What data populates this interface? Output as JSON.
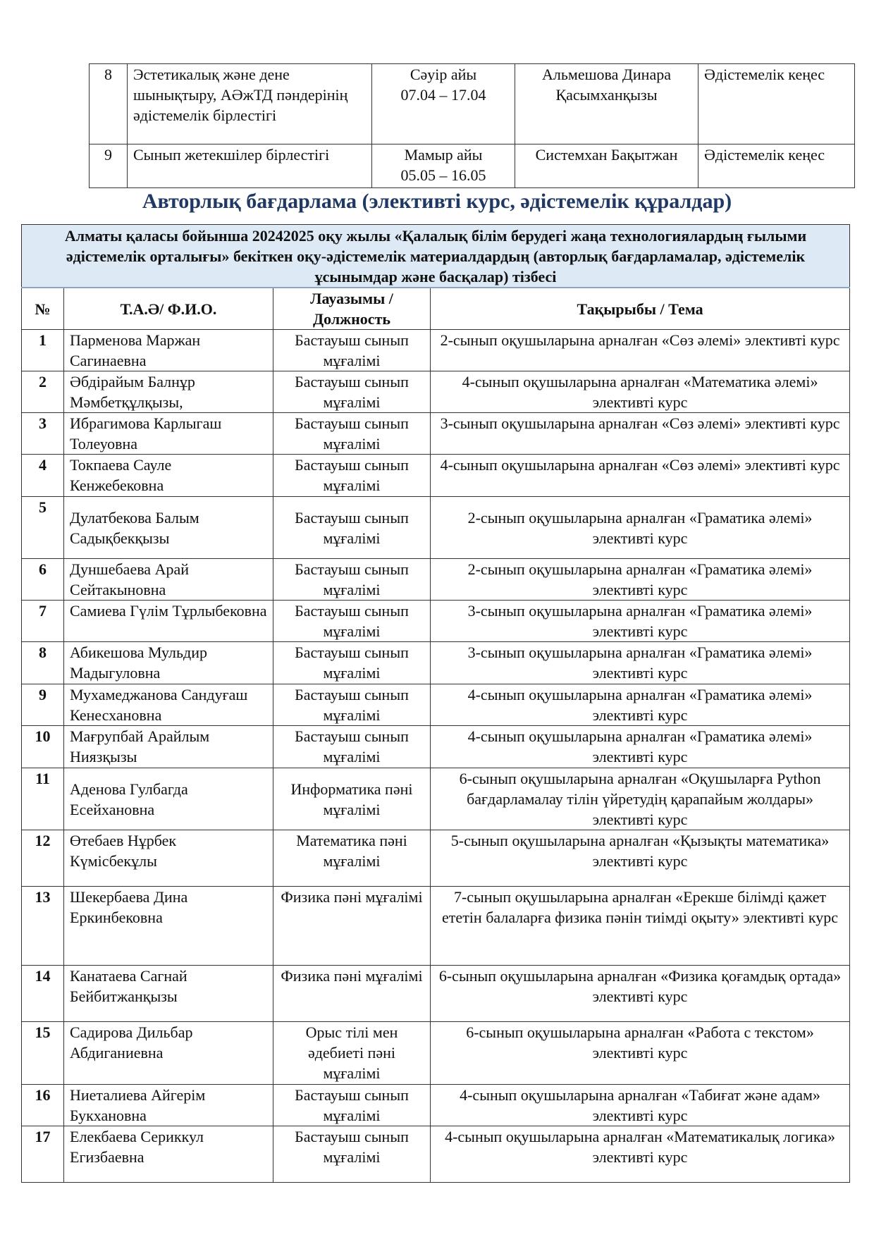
{
  "prev_table": [
    {
      "num": "8",
      "name": "Эстетикалық және дене шынықтыру, АӘжТД пәндерінің әдістемелік бірлестігі",
      "month": "Сәуір айы",
      "dates": "07.04 – 17.04",
      "person": "Альмешова Динара Қасымханқызы",
      "form": "Әдістемелік кеңес"
    },
    {
      "num": "9",
      "name": "Сынып жетекшілер бірлестігі",
      "month": "Мамыр айы",
      "dates": "05.05 – 16.05",
      "person": "Системхан Бақытжан",
      "form": "Әдістемелік кеңес"
    }
  ],
  "heading": "Авторлық бағдарлама (элективті курс, әдістемелік құралдар)",
  "main": {
    "banner": "Алматы қаласы бойынша 20242025 оқу жылы «Қалалық білім берудегі жаңа технологиялардың ғылыми әдістемелік орталығы» бекіткен оқу-әдістемелік материалдардың (авторлық бағдарламалар, әдістемелік ұсынымдар және басқалар) тізбесі",
    "headers": [
      "№",
      "Т.А.Ә/ Ф.И.О.",
      "Лауазымы / Должность",
      "Тақырыбы / Тема"
    ],
    "rows": [
      [
        "1",
        "Парменова Маржан Сагинаевна",
        "Бастауыш сынып мұғалімі",
        "2-сынып оқушыларына арналған «Сөз әлемі» элективті курс"
      ],
      [
        "2",
        "Әбдірайым Балнұр Мәмбетқұлқызы,",
        "Бастауыш сынып мұғалімі",
        "4-сынып оқушыларына арналған «Математика әлемі» элективті курс"
      ],
      [
        "3",
        "Ибрагимова Карлыгаш Толеуовна",
        "Бастауыш сынып мұғалімі",
        "3-сынып оқушыларына арналған «Сөз әлемі» элективті курс"
      ],
      [
        "4",
        "Токпаева Сауле Кенжебековна",
        "Бастауыш сынып мұғалімі",
        "4-сынып оқушыларына арналған «Сөз әлемі» элективті курс"
      ],
      [
        "5",
        "Дулатбекова Балым Садықбекқызы",
        "Бастауыш сынып мұғалімі",
        "2-сынып оқушыларына арналған «Граматика әлемі» элективті курс"
      ],
      [
        "6",
        "Дуншебаева Арай Сейтакыновна",
        "Бастауыш сынып мұғалімі",
        "2-сынып оқушыларына арналған «Граматика әлемі» элективті курс"
      ],
      [
        "7",
        "Самиева Гүлім Тұрлыбековна",
        "Бастауыш сынып мұғалімі",
        "3-сынып оқушыларына арналған «Граматика әлемі» элективті курс"
      ],
      [
        "8",
        "Абикешова Мульдир Мадыгуловна",
        "Бастауыш сынып мұғалімі",
        "3-сынып оқушыларына арналған «Граматика әлемі» элективті курс"
      ],
      [
        "9",
        "Мухамеджанова Сандуғаш Кенесхановна",
        "Бастауыш сынып мұғалімі",
        "4-сынып оқушыларына арналған «Граматика әлемі» элективті курс"
      ],
      [
        "10",
        "Мағрупбай Арайлым Ниязқызы",
        "Бастауыш сынып мұғалімі",
        "4-сынып оқушыларына арналған «Граматика әлемі» элективті курс"
      ],
      [
        "11",
        "Аденова Гулбагда Есейхановна",
        "Информатика пәні мұғалімі",
        "6-сынып оқушыларына арналған «Оқушыларға Python бағдарламалау тілін үйретудің қарапайым жолдары» элективті курс"
      ],
      [
        "12",
        "Өтебаев Нұрбек Күмісбекұлы",
        "Математика пәні мұғалімі",
        "5-сынып оқушыларына арналған  «Қызықты математика» элективті курс"
      ],
      [
        "13",
        "Шекербаева Дина Еркинбековна",
        "Физика пәні мұғалімі",
        "7-сынып оқушыларына арналған «Ерекше білімді қажет ететін балаларға физика пәнін тиімді оқыту» элективті курс"
      ],
      [
        "14",
        "Канатаева Сагнай Бейбитжанқызы",
        "Физика пәні мұғалімі",
        "6-сынып оқушыларына арналған «Физика қоғамдық ортада» элективті курс"
      ],
      [
        "15",
        "Садирова Дильбар Абдиганиевна",
        "Орыс тілі мен әдебиеті пәні мұғалімі",
        "6-сынып оқушыларына арналған «Работа с текстом» элективті курс"
      ],
      [
        "16",
        "Ниеталиева Айгерім Букхановна",
        "Бастауыш сынып мұғалімі",
        "4-сынып оқушыларына арналған «Табиғат және адам» элективті курс"
      ],
      [
        "17",
        "Елекбаева Сериккул Егизбаевна",
        "Бастауыш сынып мұғалімі",
        "4-сынып оқушыларына арналған «Математикалық логика» элективті курс"
      ]
    ]
  }
}
